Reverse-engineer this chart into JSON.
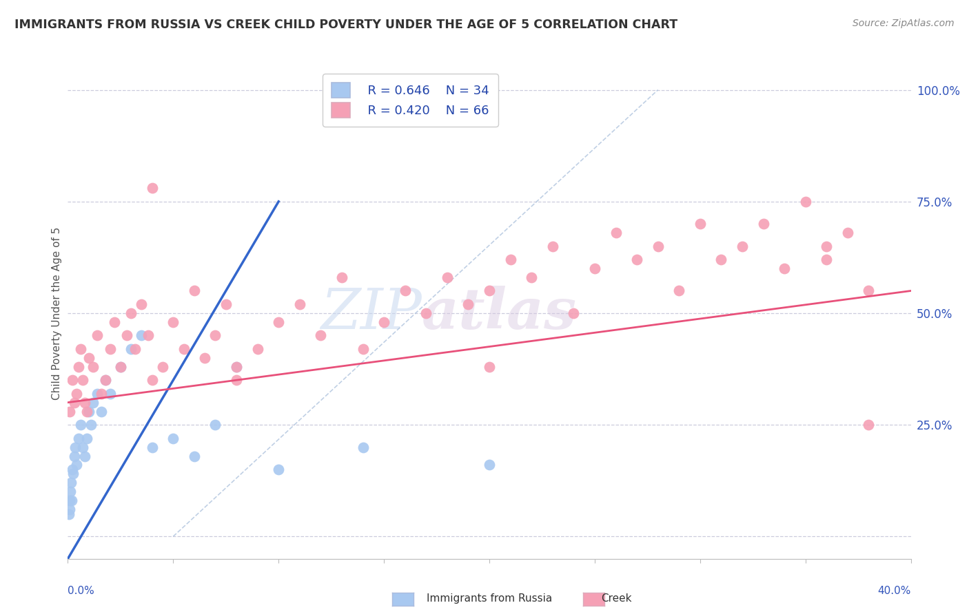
{
  "title": "IMMIGRANTS FROM RUSSIA VS CREEK CHILD POVERTY UNDER THE AGE OF 5 CORRELATION CHART",
  "source": "Source: ZipAtlas.com",
  "ylabel": "Child Poverty Under the Age of 5",
  "legend_russia_r": "R = 0.646",
  "legend_russia_n": "N = 34",
  "legend_creek_r": "R = 0.420",
  "legend_creek_n": "N = 66",
  "color_russia": "#a8c8f0",
  "color_creek": "#f5a0b5",
  "color_russia_line": "#3366cc",
  "color_creek_line": "#e8507a",
  "color_dashed": "#b0c4de",
  "watermark_zip": "ZIP",
  "watermark_atlas": "atlas",
  "russia_x": [
    0.05,
    0.07,
    0.09,
    0.12,
    0.15,
    0.18,
    0.2,
    0.25,
    0.3,
    0.35,
    0.4,
    0.5,
    0.6,
    0.7,
    0.8,
    0.9,
    1.0,
    1.1,
    1.2,
    1.4,
    1.6,
    1.8,
    2.0,
    2.5,
    3.0,
    3.5,
    4.0,
    5.0,
    6.0,
    7.0,
    8.0,
    10.0,
    14.0,
    20.0
  ],
  "russia_y": [
    5,
    8,
    6,
    10,
    12,
    8,
    15,
    14,
    18,
    20,
    16,
    22,
    25,
    20,
    18,
    22,
    28,
    25,
    30,
    32,
    28,
    35,
    32,
    38,
    42,
    45,
    20,
    22,
    18,
    25,
    38,
    15,
    20,
    16
  ],
  "creek_x": [
    0.1,
    0.2,
    0.3,
    0.4,
    0.5,
    0.6,
    0.7,
    0.8,
    0.9,
    1.0,
    1.2,
    1.4,
    1.6,
    1.8,
    2.0,
    2.2,
    2.5,
    2.8,
    3.0,
    3.2,
    3.5,
    3.8,
    4.0,
    4.5,
    5.0,
    5.5,
    6.0,
    6.5,
    7.0,
    7.5,
    8.0,
    9.0,
    10.0,
    11.0,
    12.0,
    13.0,
    14.0,
    15.0,
    16.0,
    17.0,
    18.0,
    19.0,
    20.0,
    21.0,
    22.0,
    23.0,
    24.0,
    25.0,
    26.0,
    27.0,
    28.0,
    29.0,
    30.0,
    31.0,
    32.0,
    33.0,
    34.0,
    35.0,
    36.0,
    37.0,
    38.0,
    4.0,
    8.0,
    20.0,
    36.0,
    38.0
  ],
  "creek_y": [
    28,
    35,
    30,
    32,
    38,
    42,
    35,
    30,
    28,
    40,
    38,
    45,
    32,
    35,
    42,
    48,
    38,
    45,
    50,
    42,
    52,
    45,
    35,
    38,
    48,
    42,
    55,
    40,
    45,
    52,
    38,
    42,
    48,
    52,
    45,
    58,
    42,
    48,
    55,
    50,
    58,
    52,
    55,
    62,
    58,
    65,
    50,
    60,
    68,
    62,
    65,
    55,
    70,
    62,
    65,
    70,
    60,
    75,
    62,
    68,
    55,
    78,
    35,
    38,
    65,
    25
  ],
  "xlim": [
    0,
    40
  ],
  "ylim": [
    -5,
    105
  ],
  "ytick_vals": [
    0,
    25,
    50,
    75,
    100
  ],
  "ytick_labels": [
    "",
    "25.0%",
    "50.0%",
    "75.0%",
    "100.0%"
  ],
  "xtick_vals": [
    0,
    5,
    10,
    15,
    20,
    25,
    30,
    35,
    40
  ],
  "russia_line_x": [
    0,
    10
  ],
  "russia_line_y": [
    -5,
    75
  ],
  "creek_line_x": [
    0,
    40
  ],
  "creek_line_y": [
    30,
    55
  ]
}
